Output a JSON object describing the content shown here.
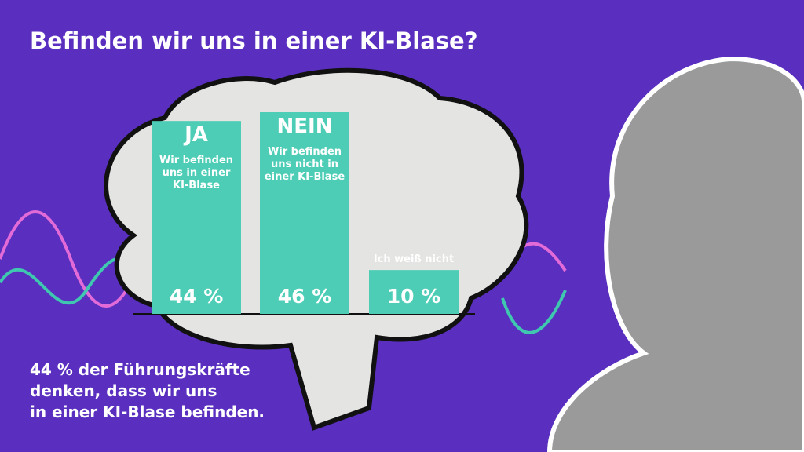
{
  "chart_data": {
    "type": "bar",
    "title": "Befinden wir uns in einer KI-Blase?",
    "categories": [
      "JA",
      "NEIN",
      null
    ],
    "descriptions": [
      [
        "Wir befinden",
        "uns in einer",
        "KI-Blase"
      ],
      [
        "Wir befinden",
        "uns nicht in",
        "einer KI-Blase"
      ],
      [
        "Ich weiß nicht"
      ]
    ],
    "values": [
      44,
      46,
      10
    ],
    "value_labels": [
      "44 %",
      "46 %",
      "10 %"
    ],
    "color": "#4ecdb6",
    "annotation_lines": [
      "44 % der Führungskräfte",
      "denken, dass wir uns",
      "in einer KI-Blase befinden."
    ]
  }
}
